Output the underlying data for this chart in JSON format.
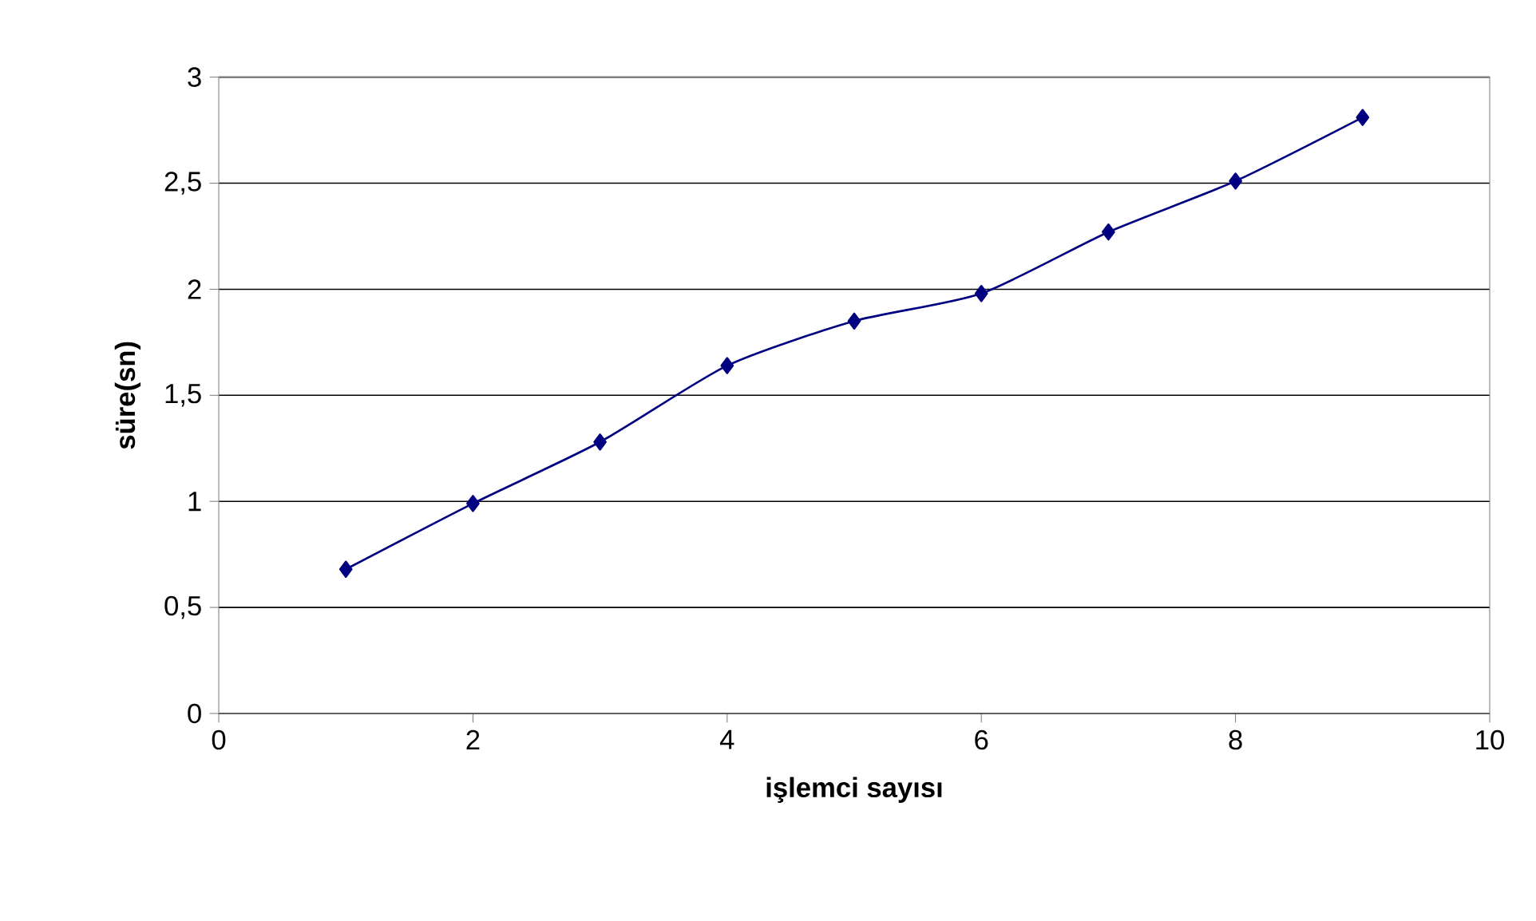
{
  "chart_data": {
    "type": "line",
    "xlabel": "işlemci sayısı",
    "ylabel": "süre(sn)",
    "x": [
      1,
      2,
      3,
      4,
      5,
      6,
      7,
      8,
      9
    ],
    "series": [
      {
        "color": "#000080",
        "values": [
          0.68,
          0.99,
          1.28,
          1.64,
          1.85,
          1.98,
          2.27,
          2.51,
          2.81
        ]
      }
    ],
    "xlim": [
      0,
      10
    ],
    "xticks": [
      0,
      2,
      4,
      6,
      8,
      10
    ],
    "ylim": [
      0,
      3
    ],
    "yticks": [
      0,
      {
        "value": 0.5,
        "label": "0,5"
      },
      1,
      {
        "value": 1.5,
        "label": "1,5"
      },
      2,
      {
        "value": 2.5,
        "label": "2,5"
      },
      3
    ],
    "grid": "y",
    "marker": "diamond",
    "line_style": "solid"
  }
}
